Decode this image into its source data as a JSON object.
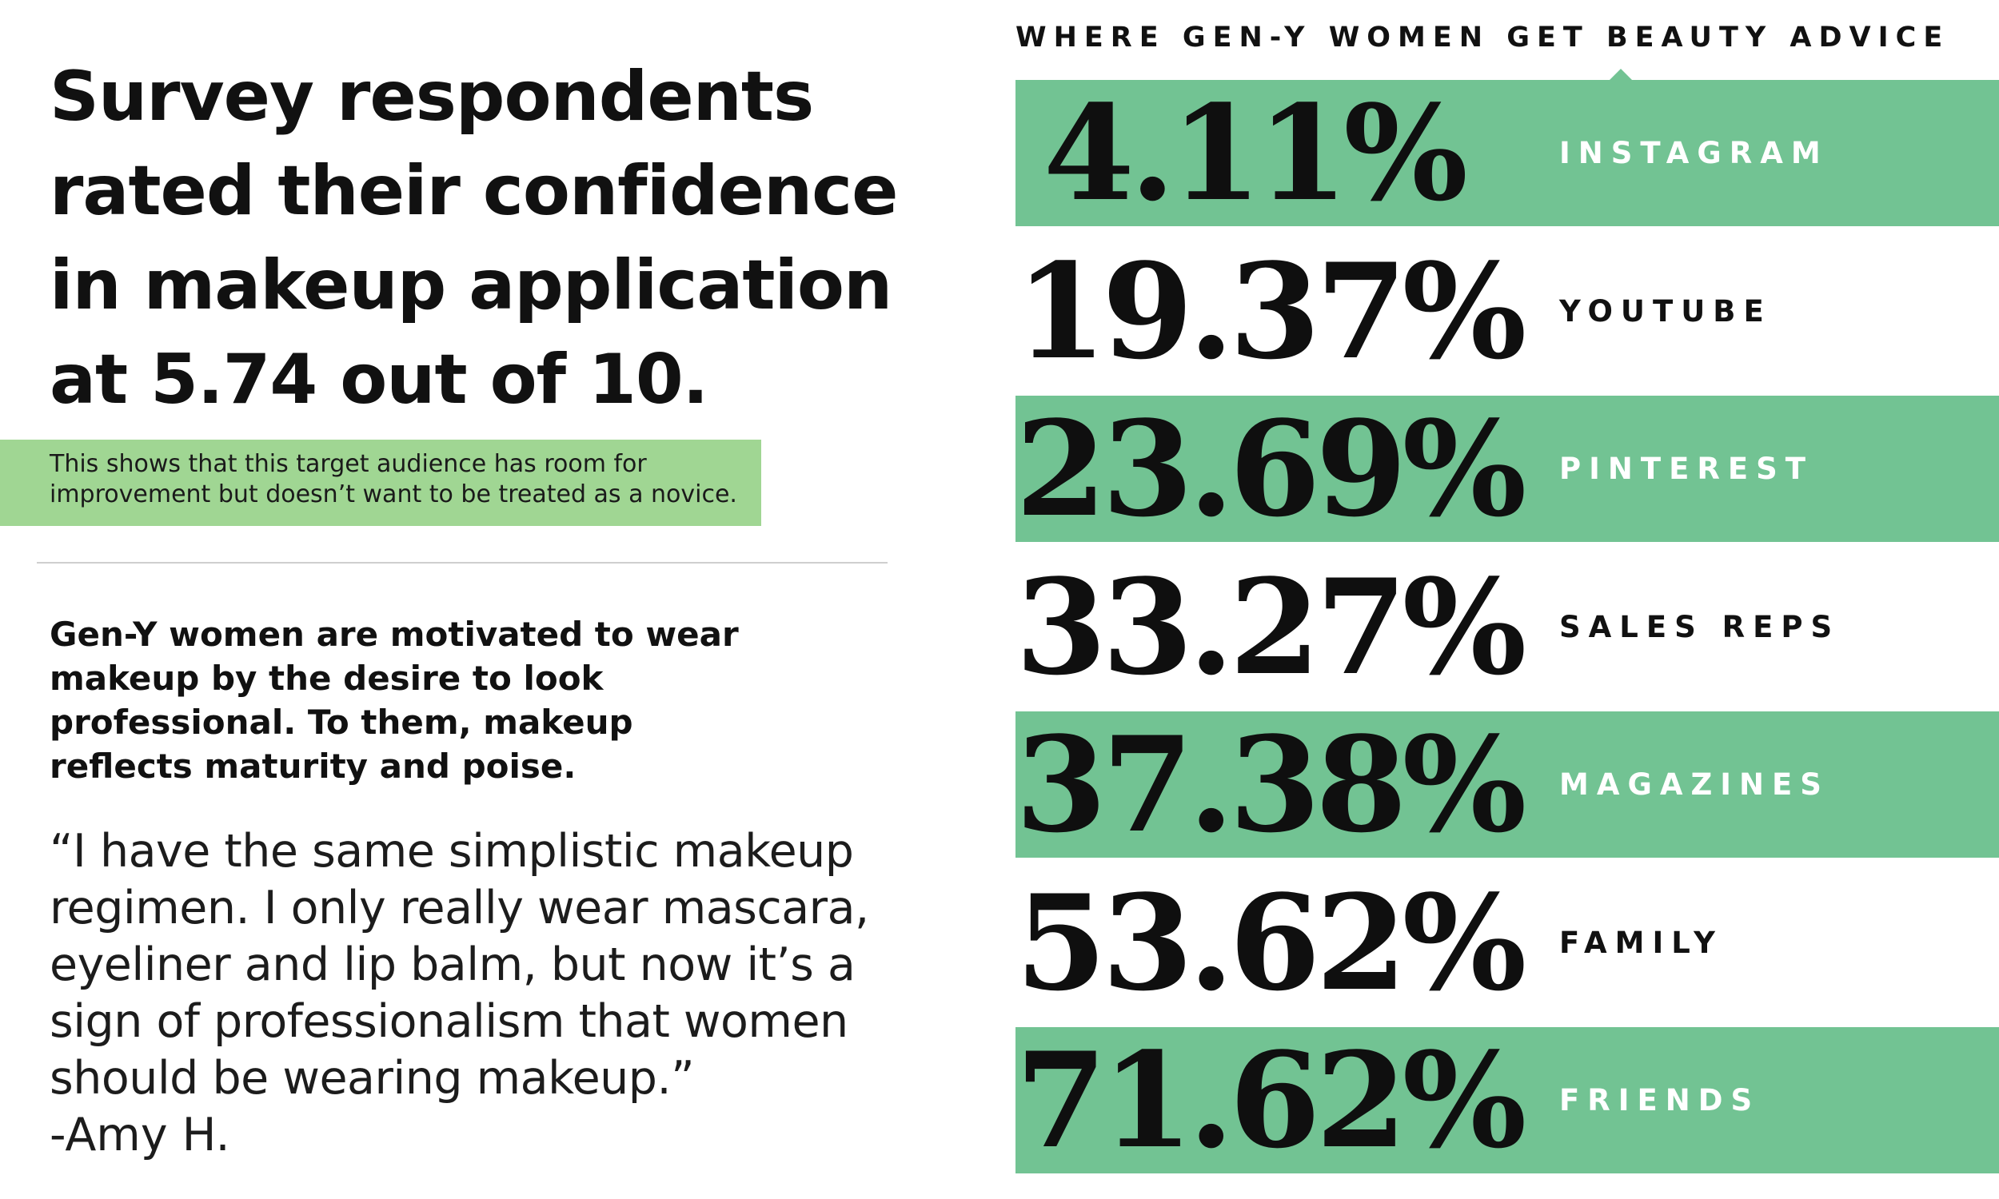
{
  "left": {
    "headline": "Survey respondents rated their confidence in makeup application at 5.74 out of 10.",
    "highlight": "This shows that this target audience has room for improvement but doesn’t want to be treated as a novice.",
    "motivation": "Gen-Y women are motivated to wear makeup by the desire to look professional. To them, makeup reflects maturity and poise.",
    "quote": "“I have the same simplistic makeup regimen. I only really wear mascara, eyeliner and lip balm, but now it’s a sign of professionalism that women should be wearing makeup.”",
    "attribution": "-Amy H."
  },
  "colors": {
    "row_shade": "#72c393",
    "highlight_box": "#a0d693",
    "text_dark": "#111111",
    "label_on_shade": "#ffffff"
  },
  "chart_data": {
    "type": "table",
    "title": "WHERE GEN-Y WOMEN GET BEAUTY ADVICE",
    "unit": "%",
    "categories": [
      "INSTAGRAM",
      "YOUTUBE",
      "PINTEREST",
      "SALES REPS",
      "MAGAZINES",
      "FAMILY",
      "FRIENDS"
    ],
    "values": [
      4.11,
      19.37,
      23.69,
      33.27,
      37.38,
      53.62,
      71.62
    ],
    "labels": [
      "4.11%",
      "19.37%",
      "23.69%",
      "33.27%",
      "37.38%",
      "53.62%",
      "71.62%"
    ],
    "shaded_rows": [
      true,
      false,
      true,
      false,
      true,
      false,
      true
    ]
  }
}
